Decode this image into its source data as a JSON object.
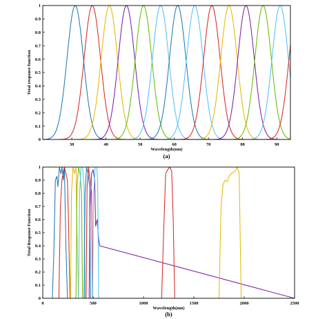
{
  "chart_data": [
    {
      "panel": "(a)",
      "type": "line",
      "xlabel": "Wavelength(nm)",
      "ylabel": "Total response function",
      "xlim": [
        21.5,
        94
      ],
      "ylim": [
        0,
        1
      ],
      "xticks": [
        30,
        40,
        50,
        60,
        70,
        80,
        90
      ],
      "yticks": [
        0,
        0.1,
        0.2,
        0.3,
        0.4,
        0.5,
        0.6,
        0.7,
        0.8,
        0.9,
        1
      ],
      "ytick_labels": [
        "0",
        "0.1",
        "0.2",
        "0.3",
        "0.4",
        "0.5",
        "0.6",
        "0.7",
        "0.8",
        "0.9",
        "1"
      ],
      "grid": false,
      "legend": "none",
      "series": [
        {
          "peak": 31,
          "color": "#1f77b4"
        },
        {
          "peak": 36,
          "color": "#d62728"
        },
        {
          "peak": 41,
          "color": "#e6b800"
        },
        {
          "peak": 46,
          "color": "#7b1fa2"
        },
        {
          "peak": 51,
          "color": "#66bb00"
        },
        {
          "peak": 56,
          "color": "#4fc3f7"
        },
        {
          "peak": 61,
          "color": "#1f77b4"
        },
        {
          "peak": 66,
          "color": "#4fc3f7"
        },
        {
          "peak": 71,
          "color": "#d62728"
        },
        {
          "peak": 76,
          "color": "#e6b800"
        },
        {
          "peak": 81,
          "color": "#7b1fa2"
        },
        {
          "peak": 86,
          "color": "#66bb00"
        },
        {
          "peak": 91,
          "color": "#4fc3f7"
        },
        {
          "peak": 96,
          "color": "#d62728"
        }
      ]
    },
    {
      "panel": "(b)",
      "type": "line",
      "xlabel": "Wavelength(nm)",
      "ylabel": "Total Response Function",
      "xlim": [
        0,
        2500
      ],
      "ylim": [
        0,
        1
      ],
      "xticks": [
        0,
        500,
        1000,
        1500,
        2000,
        2500
      ],
      "yticks": [
        0,
        0.1,
        0.2,
        0.3,
        0.4,
        0.5,
        0.6,
        0.7,
        0.8,
        0.9,
        1
      ],
      "ytick_labels": [
        "0",
        "0.1",
        "0.2",
        "0.3",
        "0.4",
        "0.5",
        "0.6",
        "0.7",
        "0.8",
        "0.9",
        "1"
      ],
      "grid": false,
      "legend": "none",
      "series": [
        {
          "color": "#1f77b4",
          "x": [
            0,
            95,
            110,
            125,
            140,
            150,
            165,
            180,
            190,
            205,
            215,
            230,
            245,
            2500
          ],
          "y": [
            0,
            0,
            0.35,
            0.9,
            0.93,
            0.85,
            1,
            0.95,
            1,
            0.9,
            1,
            0.4,
            0,
            0
          ]
        },
        {
          "color": "#d62728",
          "x": [
            0,
            160,
            175,
            190,
            205,
            215,
            230,
            245,
            255,
            270,
            2500
          ],
          "y": [
            0,
            0,
            0.7,
            0.9,
            0.97,
            1,
            0.95,
            0.9,
            0.6,
            0,
            0
          ]
        },
        {
          "color": "#e6b800",
          "x": [
            0,
            275,
            285,
            300,
            315,
            330,
            340,
            355,
            2500
          ],
          "y": [
            0,
            0,
            0.8,
            1,
            0.95,
            1,
            0.5,
            0,
            0
          ]
        },
        {
          "color": "#66bb00",
          "x": [
            0,
            330,
            340,
            355,
            370,
            385,
            395,
            2500
          ],
          "y": [
            0,
            0,
            0.85,
            1,
            0.95,
            0.8,
            0,
            0
          ]
        },
        {
          "color": "#4fc3f7",
          "x": [
            0,
            355,
            365,
            380,
            395,
            410,
            420,
            2500
          ],
          "y": [
            0,
            0,
            0.8,
            1,
            1,
            0.85,
            0,
            0
          ]
        },
        {
          "color": "#1f77b4",
          "x": [
            0,
            410,
            420,
            435,
            450,
            465,
            475,
            2500
          ],
          "y": [
            0,
            0,
            0.8,
            1,
            0.95,
            0.85,
            0,
            0
          ]
        },
        {
          "color": "#d62728",
          "x": [
            0,
            430,
            440,
            455,
            470,
            485,
            495,
            2500
          ],
          "y": [
            0,
            0,
            0.85,
            1,
            0.9,
            0.8,
            0,
            0
          ]
        },
        {
          "color": "#7b1fa2",
          "x": [
            0,
            460,
            470,
            485,
            500,
            515,
            525,
            540,
            555,
            565,
            2500
          ],
          "y": [
            0,
            0,
            0.7,
            0.95,
            0.98,
            0.9,
            0.55,
            0.6,
            0.45,
            0.4,
            0
          ]
        },
        {
          "color": "#4fc3f7",
          "x": [
            0,
            495,
            505,
            520,
            535,
            545,
            555,
            2500
          ],
          "y": [
            0,
            0,
            0.8,
            1,
            1,
            0.9,
            0,
            0
          ]
        },
        {
          "color": "#d62728",
          "x": [
            0,
            1180,
            1200,
            1220,
            1240,
            1260,
            1280,
            1295,
            1310,
            2500
          ],
          "y": [
            0,
            0,
            0.5,
            0.95,
            0.98,
            1,
            0.97,
            0.6,
            0,
            0
          ]
        },
        {
          "color": "#e6b800",
          "x": [
            0,
            1750,
            1770,
            1790,
            1810,
            1830,
            1850,
            1870,
            1890,
            1910,
            1930,
            1950,
            1970,
            2500
          ],
          "y": [
            0,
            0,
            0.7,
            0.87,
            0.9,
            0.89,
            0.93,
            0.95,
            0.96,
            0.97,
            1,
            0.95,
            0,
            0
          ]
        },
        {
          "color": "#4caf50",
          "x": [
            0,
            2500
          ],
          "y": [
            0,
            0
          ]
        }
      ]
    }
  ]
}
